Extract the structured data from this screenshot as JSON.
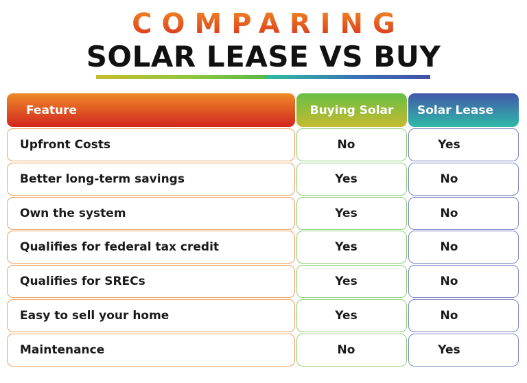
{
  "title": {
    "line1": "COMPARING",
    "line2": "SOLAR LEASE VS BUY"
  },
  "colors": {
    "feature_header": "#e05a22",
    "buying_header": "#8cc63f",
    "lease_header": "#3a6fb5"
  },
  "table": {
    "headers": [
      "Feature",
      "Buying Solar",
      "Solar Lease"
    ],
    "rows": [
      [
        "Upfront Costs",
        "No",
        "Yes"
      ],
      [
        "Better long-term savings",
        "Yes",
        "No"
      ],
      [
        "Own the system",
        "Yes",
        "No"
      ],
      [
        "Qualifies for federal tax credit",
        "Yes",
        "No"
      ],
      [
        "Qualifies for SRECs",
        "Yes",
        "No"
      ],
      [
        "Easy to sell your home",
        "Yes",
        "No"
      ],
      [
        "Maintenance",
        "No",
        "Yes"
      ]
    ]
  }
}
